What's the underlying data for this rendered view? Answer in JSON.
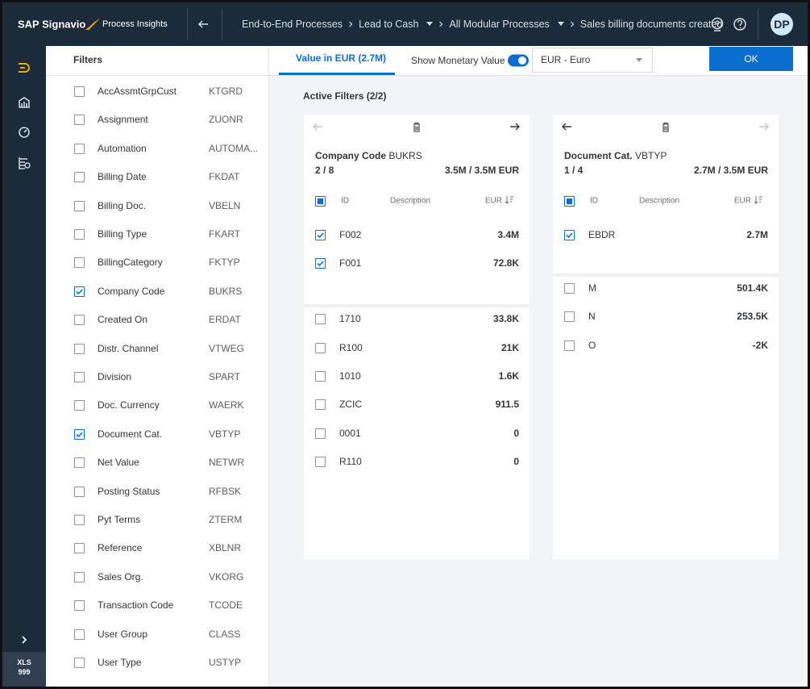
{
  "header": {
    "brand": "SAP Signavio",
    "product": "Process Insights",
    "breadcrumbs": [
      {
        "label": "End-to-End Processes",
        "dropdown": false
      },
      {
        "label": "Lead to Cash",
        "dropdown": true
      },
      {
        "label": "All Modular Processes",
        "dropdown": true
      },
      {
        "label": "Sales billing documents created",
        "dropdown": false
      }
    ],
    "avatar": "DP"
  },
  "sidebar": {
    "badge": [
      "XLS",
      "999"
    ]
  },
  "filters": {
    "title": "Filters",
    "items": [
      {
        "label": "AccAssmtGrpCust",
        "code": "KTGRD",
        "checked": false
      },
      {
        "label": "Assignment",
        "code": "ZUONR",
        "checked": false
      },
      {
        "label": "Automation",
        "code": "AUTOMA...",
        "checked": false
      },
      {
        "label": "Billing Date",
        "code": "FKDAT",
        "checked": false
      },
      {
        "label": "Billing Doc.",
        "code": "VBELN",
        "checked": false
      },
      {
        "label": "Billing Type",
        "code": "FKART",
        "checked": false
      },
      {
        "label": "BillingCategory",
        "code": "FKTYP",
        "checked": false
      },
      {
        "label": "Company Code",
        "code": "BUKRS",
        "checked": true
      },
      {
        "label": "Created On",
        "code": "ERDAT",
        "checked": false
      },
      {
        "label": "Distr. Channel",
        "code": "VTWEG",
        "checked": false
      },
      {
        "label": "Division",
        "code": "SPART",
        "checked": false
      },
      {
        "label": "Doc. Currency",
        "code": "WAERK",
        "checked": false
      },
      {
        "label": "Document Cat.",
        "code": "VBTYP",
        "checked": true
      },
      {
        "label": "Net Value",
        "code": "NETWR",
        "checked": false
      },
      {
        "label": "Posting Status",
        "code": "RFBSK",
        "checked": false
      },
      {
        "label": "Pyt Terms",
        "code": "ZTERM",
        "checked": false
      },
      {
        "label": "Reference",
        "code": "XBLNR",
        "checked": false
      },
      {
        "label": "Sales Org.",
        "code": "VKORG",
        "checked": false
      },
      {
        "label": "Transaction Code",
        "code": "TCODE",
        "checked": false
      },
      {
        "label": "User Group",
        "code": "CLASS",
        "checked": false
      },
      {
        "label": "User Type",
        "code": "USTYP",
        "checked": false
      }
    ]
  },
  "toolbar": {
    "tab": "Value in EUR (2.7M)",
    "toggle_label": "Show Monetary Value",
    "toggle_on": true,
    "currency": "EUR - Euro",
    "button": "OK"
  },
  "active_filters": {
    "title": "Active Filters (2/2)",
    "cards": [
      {
        "title": "Company Code",
        "code": "BUKRS",
        "count": "2 / 8",
        "total": "3.5M / 3.5M EUR",
        "back_enabled": false,
        "forward_enabled": true,
        "columns": [
          "ID",
          "Description",
          "EUR"
        ],
        "selected": [
          {
            "id": "F002",
            "value": "3.4M"
          },
          {
            "id": "F001",
            "value": "72.8K"
          }
        ],
        "unselected": [
          {
            "id": "1710",
            "value": "33.8K"
          },
          {
            "id": "R100",
            "value": "21K"
          },
          {
            "id": "1010",
            "value": "1.6K"
          },
          {
            "id": "ZCIC",
            "value": "911.5"
          },
          {
            "id": "0001",
            "value": "0"
          },
          {
            "id": "R110",
            "value": "0"
          }
        ]
      },
      {
        "title": "Document Cat.",
        "code": "VBTYP",
        "count": "1 / 4",
        "total": "2.7M / 3.5M EUR",
        "back_enabled": true,
        "forward_enabled": false,
        "columns": [
          "ID",
          "Description",
          "EUR"
        ],
        "selected": [
          {
            "id": "EBDR",
            "value": "2.7M"
          }
        ],
        "unselected": [
          {
            "id": "M",
            "value": "501.4K"
          },
          {
            "id": "N",
            "value": "253.5K"
          },
          {
            "id": "O",
            "value": "-2K"
          }
        ]
      }
    ]
  }
}
